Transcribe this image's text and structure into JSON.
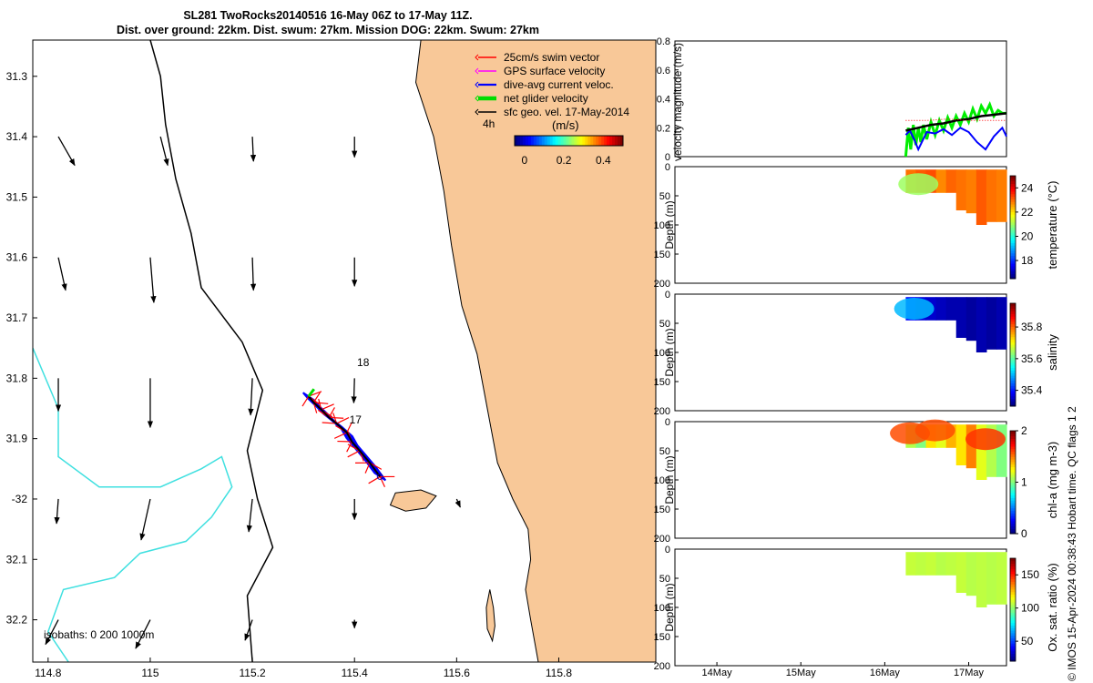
{
  "title_line1": "SL281 TwoRocks20140516 16-May 06Z to 17-May 11Z.",
  "title_line2": "Dist. over ground: 22km. Dist. swum: 27km. Mission DOG: 22km. Swum: 27km",
  "credit": "© IMOS 15-Apr-2024 00:38:43 Hobart time. QC flags 1  2",
  "colors": {
    "land": "#f8c898",
    "coast": "#000000",
    "isobath_200": "#000000",
    "isobath_1000": "#40e0e0",
    "track_swim": "#ff0000",
    "track_current": "#0000ff",
    "net": "#00dd00"
  },
  "chart_data": [
    {
      "type": "map",
      "name": "glider-track-map",
      "lon_range": [
        114.77,
        115.99
      ],
      "lat_range": [
        -32.27,
        -31.24
      ],
      "x_ticks": [
        {
          "v": 114.8,
          "label": "114.8"
        },
        {
          "v": 115,
          "label": "115"
        },
        {
          "v": 115.2,
          "label": "115.2"
        },
        {
          "v": 115.4,
          "label": "115.4"
        },
        {
          "v": 115.6,
          "label": "115.6"
        },
        {
          "v": 115.8,
          "label": "115.8"
        }
      ],
      "y_ticks": [
        {
          "v": -31.3,
          "label": "31.3"
        },
        {
          "v": -31.4,
          "label": "31.4"
        },
        {
          "v": -31.5,
          "label": "31.5"
        },
        {
          "v": -31.6,
          "label": "31.6"
        },
        {
          "v": -31.7,
          "label": "31.7"
        },
        {
          "v": -31.8,
          "label": "31.8"
        },
        {
          "v": -31.9,
          "label": "31.9"
        },
        {
          "v": -32,
          "label": "-32"
        },
        {
          "v": -32.1,
          "label": "32.1"
        },
        {
          "v": -32.2,
          "label": "32.2"
        }
      ],
      "legend": [
        {
          "label": "25cm/s swim vector",
          "color": "#ff0000",
          "width": 1
        },
        {
          "label": "GPS surface velocity",
          "color": "#ff00ff",
          "width": 1
        },
        {
          "label": "dive-avg current veloc.",
          "color": "#0000ff",
          "width": 1.5
        },
        {
          "label": "net glider velocity",
          "color": "#00dd00",
          "width": 3
        },
        {
          "label": "sfc geo. vel. 17-May-2014",
          "color": "#000000",
          "width": 1
        }
      ],
      "colorbar": {
        "label": "(m/s)",
        "duration_label": "4h",
        "ticks": [
          {
            "v": 0,
            "label": "0"
          },
          {
            "v": 0.2,
            "label": "0.2"
          },
          {
            "v": 0.4,
            "label": "0.4"
          }
        ],
        "range": [
          -0.05,
          0.5
        ]
      },
      "isobath_label": "isobaths: 0   200  1000m",
      "track_labels": [
        {
          "lon": 115.405,
          "lat": -31.78,
          "text": "18"
        },
        {
          "lon": 115.39,
          "lat": -31.875,
          "text": "17"
        }
      ],
      "track": [
        [
          115.45,
          -31.963
        ],
        [
          115.43,
          -31.94
        ],
        [
          115.41,
          -31.92
        ],
        [
          115.395,
          -31.905
        ],
        [
          115.385,
          -31.89
        ],
        [
          115.365,
          -31.875
        ],
        [
          115.35,
          -31.865
        ],
        [
          115.335,
          -31.852
        ],
        [
          115.32,
          -31.84
        ],
        [
          115.31,
          -31.83
        ]
      ],
      "coastline": [
        [
          115.99,
          -31.24
        ],
        [
          115.53,
          -31.24
        ],
        [
          115.52,
          -31.31
        ],
        [
          115.555,
          -31.4
        ],
        [
          115.575,
          -31.49
        ],
        [
          115.59,
          -31.58
        ],
        [
          115.61,
          -31.68
        ],
        [
          115.64,
          -31.76
        ],
        [
          115.66,
          -31.85
        ],
        [
          115.68,
          -31.94
        ],
        [
          115.71,
          -32.0
        ],
        [
          115.74,
          -32.05
        ],
        [
          115.745,
          -32.1
        ],
        [
          115.735,
          -32.15
        ],
        [
          115.745,
          -32.2
        ],
        [
          115.76,
          -32.27
        ],
        [
          115.99,
          -32.27
        ]
      ],
      "island_rottnest": [
        [
          115.48,
          -31.99
        ],
        [
          115.53,
          -31.985
        ],
        [
          115.56,
          -31.995
        ],
        [
          115.54,
          -32.015
        ],
        [
          115.5,
          -32.02
        ],
        [
          115.47,
          -32.01
        ],
        [
          115.48,
          -31.99
        ]
      ],
      "island_garden": [
        [
          115.665,
          -32.15
        ],
        [
          115.672,
          -32.18
        ],
        [
          115.675,
          -32.21
        ],
        [
          115.67,
          -32.235
        ],
        [
          115.66,
          -32.215
        ],
        [
          115.658,
          -32.18
        ],
        [
          115.665,
          -32.15
        ]
      ],
      "isobath_200": [
        [
          115.0,
          -31.24
        ],
        [
          115.02,
          -31.3
        ],
        [
          115.03,
          -31.38
        ],
        [
          115.05,
          -31.47
        ],
        [
          115.08,
          -31.56
        ],
        [
          115.1,
          -31.65
        ],
        [
          115.18,
          -31.74
        ],
        [
          115.22,
          -31.82
        ],
        [
          115.19,
          -31.92
        ],
        [
          115.21,
          -32.0
        ],
        [
          115.24,
          -32.08
        ],
        [
          115.19,
          -32.16
        ],
        [
          115.2,
          -32.27
        ]
      ],
      "isobath_1000": [
        [
          114.77,
          -31.75
        ],
        [
          114.82,
          -31.85
        ],
        [
          114.82,
          -31.93
        ],
        [
          114.9,
          -31.98
        ],
        [
          115.02,
          -31.98
        ],
        [
          115.1,
          -31.95
        ],
        [
          115.14,
          -31.93
        ],
        [
          115.16,
          -31.98
        ],
        [
          115.12,
          -32.03
        ],
        [
          115.07,
          -32.07
        ],
        [
          114.98,
          -32.09
        ],
        [
          114.93,
          -32.13
        ],
        [
          114.83,
          -32.15
        ],
        [
          114.8,
          -32.22
        ],
        [
          114.84,
          -32.27
        ]
      ],
      "geo_vectors": [
        {
          "lon": 114.82,
          "lat": -31.4,
          "u": 0.045,
          "v": -0.035
        },
        {
          "lon": 115.02,
          "lat": -31.4,
          "u": 0.02,
          "v": -0.035
        },
        {
          "lon": 115.2,
          "lat": -31.4,
          "u": 0.003,
          "v": -0.03
        },
        {
          "lon": 115.4,
          "lat": -31.4,
          "u": 0.0,
          "v": -0.025
        },
        {
          "lon": 114.82,
          "lat": -31.6,
          "u": 0.02,
          "v": -0.04
        },
        {
          "lon": 115.0,
          "lat": -31.6,
          "u": 0.01,
          "v": -0.055
        },
        {
          "lon": 115.2,
          "lat": -31.6,
          "u": 0.003,
          "v": -0.04
        },
        {
          "lon": 115.4,
          "lat": -31.6,
          "u": 0.0,
          "v": -0.035
        },
        {
          "lon": 114.82,
          "lat": -31.8,
          "u": 0.0,
          "v": -0.04
        },
        {
          "lon": 115.0,
          "lat": -31.8,
          "u": 0.0,
          "v": -0.06
        },
        {
          "lon": 115.2,
          "lat": -31.8,
          "u": -0.005,
          "v": -0.045
        },
        {
          "lon": 115.4,
          "lat": -31.8,
          "u": -0.002,
          "v": -0.03
        },
        {
          "lon": 114.82,
          "lat": -32.0,
          "u": -0.005,
          "v": -0.03
        },
        {
          "lon": 115.0,
          "lat": -32.0,
          "u": -0.025,
          "v": -0.05
        },
        {
          "lon": 115.2,
          "lat": -32.0,
          "u": -0.01,
          "v": -0.04
        },
        {
          "lon": 115.4,
          "lat": -32.0,
          "u": 0.0,
          "v": -0.025
        },
        {
          "lon": 115.6,
          "lat": -32.0,
          "u": 0.01,
          "v": -0.01
        },
        {
          "lon": 114.82,
          "lat": -32.2,
          "u": -0.035,
          "v": -0.03
        },
        {
          "lon": 115.0,
          "lat": -32.2,
          "u": -0.04,
          "v": -0.035
        },
        {
          "lon": 115.2,
          "lat": -32.2,
          "u": -0.02,
          "v": -0.025
        },
        {
          "lon": 115.4,
          "lat": -32.2,
          "u": 0.0,
          "v": -0.01
        }
      ]
    },
    {
      "type": "line",
      "name": "velocity-magnitude",
      "ylabel": "velocity magnitude (m/s)",
      "ylim": [
        0,
        0.8
      ],
      "xlim": [
        13.5,
        17.45
      ],
      "y_ticks": [
        {
          "v": 0,
          "label": "0"
        },
        {
          "v": 0.2,
          "label": "0.2"
        },
        {
          "v": 0.4,
          "label": "0.4"
        },
        {
          "v": 0.6,
          "label": "0.6"
        },
        {
          "v": 0.8,
          "label": "0.8"
        }
      ],
      "x_ticks": [
        {
          "v": 14,
          "label": "14May"
        },
        {
          "v": 15,
          "label": "15May"
        },
        {
          "v": 16,
          "label": "16May"
        },
        {
          "v": 17,
          "label": "17May"
        }
      ],
      "series": [
        {
          "name": "net glider velocity",
          "color": "#00ee00",
          "width": 3,
          "x": [
            16.25,
            16.28,
            16.31,
            16.34,
            16.37,
            16.4,
            16.43,
            16.46,
            16.5,
            16.55,
            16.6,
            16.65,
            16.7,
            16.75,
            16.8,
            16.85,
            16.9,
            16.95,
            17.0,
            17.05,
            17.1,
            17.15,
            17.2,
            17.25,
            17.3,
            17.35,
            17.4,
            17.45
          ],
          "y": [
            0.0,
            0.2,
            0.05,
            0.22,
            0.08,
            0.2,
            0.1,
            0.22,
            0.12,
            0.24,
            0.15,
            0.25,
            0.18,
            0.27,
            0.2,
            0.28,
            0.22,
            0.3,
            0.24,
            0.33,
            0.26,
            0.35,
            0.3,
            0.36,
            0.28,
            0.32,
            0.3,
            0.3
          ]
        },
        {
          "name": "dive-avg current",
          "color": "#0000ff",
          "width": 2,
          "x": [
            16.25,
            16.3,
            16.35,
            16.4,
            16.5,
            16.6,
            16.7,
            16.8,
            16.9,
            17.0,
            17.1,
            17.2,
            17.3,
            17.4,
            17.45
          ],
          "y": [
            0.15,
            0.18,
            0.12,
            0.05,
            0.17,
            0.16,
            0.19,
            0.15,
            0.2,
            0.17,
            0.1,
            0.05,
            0.14,
            0.2,
            0.14
          ]
        },
        {
          "name": "sfc geo. vel.",
          "color": "#000000",
          "width": 2.5,
          "x": [
            16.25,
            16.4,
            16.55,
            16.7,
            16.85,
            17.0,
            17.15,
            17.3,
            17.45
          ],
          "y": [
            0.18,
            0.2,
            0.22,
            0.23,
            0.25,
            0.26,
            0.28,
            0.29,
            0.3
          ]
        },
        {
          "name": "swim vector",
          "color": "#ff0000",
          "width": 1,
          "dotted": true,
          "x": [
            16.25,
            16.5,
            16.75,
            17.0,
            17.25,
            17.45
          ],
          "y": [
            0.25,
            0.25,
            0.26,
            0.25,
            0.25,
            0.25
          ]
        }
      ]
    },
    {
      "type": "heatmap",
      "name": "temperature-section",
      "ylabel": "Depth (m)",
      "clabel": "temperature (°C)",
      "ylim": [
        0,
        200
      ],
      "y_ticks": [
        {
          "v": 0,
          "label": "0"
        },
        {
          "v": 50,
          "label": "50"
        },
        {
          "v": 100,
          "label": "100"
        },
        {
          "v": 150,
          "label": "150"
        },
        {
          "v": 200,
          "label": "200"
        }
      ],
      "crange": [
        16.5,
        25
      ],
      "cticks": [
        {
          "v": 18,
          "label": "18"
        },
        {
          "v": 20,
          "label": "20"
        },
        {
          "v": 22,
          "label": "22"
        },
        {
          "v": 24,
          "label": "24"
        }
      ],
      "section_x": [
        16.25,
        17.45
      ],
      "nearshore_depth": [
        [
          16.25,
          45
        ],
        [
          16.75,
          45
        ],
        [
          16.8,
          75
        ],
        [
          16.95,
          80
        ],
        [
          17.05,
          100
        ],
        [
          17.25,
          95
        ],
        [
          17.45,
          95
        ]
      ],
      "values": [
        23.0,
        23.2,
        23.3,
        22.8,
        23.1,
        23.0,
        22.9,
        23.2,
        23.0,
        22.9
      ],
      "patches": [
        {
          "x": 16.4,
          "d": 30,
          "v": 21.0
        }
      ]
    },
    {
      "type": "heatmap",
      "name": "salinity-section",
      "ylabel": "Depth (m)",
      "clabel": "salinity",
      "ylim": [
        0,
        200
      ],
      "y_ticks": [
        {
          "v": 0,
          "label": "0"
        },
        {
          "v": 50,
          "label": "50"
        },
        {
          "v": 100,
          "label": "100"
        },
        {
          "v": 150,
          "label": "150"
        },
        {
          "v": 200,
          "label": "200"
        }
      ],
      "crange": [
        35.3,
        35.95
      ],
      "cticks": [
        {
          "v": 35.4,
          "label": "35.4"
        },
        {
          "v": 35.6,
          "label": "35.6"
        },
        {
          "v": 35.8,
          "label": "35.8"
        }
      ],
      "section_x": [
        16.25,
        17.45
      ],
      "nearshore_depth": [
        [
          16.25,
          45
        ],
        [
          16.75,
          45
        ],
        [
          16.8,
          75
        ],
        [
          16.95,
          80
        ],
        [
          17.05,
          100
        ],
        [
          17.25,
          95
        ],
        [
          17.45,
          95
        ]
      ],
      "values": [
        35.38,
        35.36,
        35.35,
        35.34,
        35.33,
        35.33,
        35.32,
        35.33,
        35.32,
        35.33
      ],
      "patches": [
        {
          "x": 16.35,
          "d": 25,
          "v": 35.5
        }
      ]
    },
    {
      "type": "heatmap",
      "name": "chlorophyll-section",
      "ylabel": "Depth (m)",
      "clabel": "chl-a (mg m-3)",
      "ylim": [
        0,
        200
      ],
      "y_ticks": [
        {
          "v": 0,
          "label": "0"
        },
        {
          "v": 50,
          "label": "50"
        },
        {
          "v": 100,
          "label": "100"
        },
        {
          "v": 150,
          "label": "150"
        },
        {
          "v": 200,
          "label": "200"
        }
      ],
      "crange": [
        0,
        2
      ],
      "cticks": [
        {
          "v": 0,
          "label": "0"
        },
        {
          "v": 1,
          "label": "1"
        },
        {
          "v": 2,
          "label": "2"
        }
      ],
      "section_x": [
        16.25,
        17.45
      ],
      "nearshore_depth": [
        [
          16.25,
          45
        ],
        [
          16.75,
          45
        ],
        [
          16.8,
          75
        ],
        [
          16.95,
          80
        ],
        [
          17.05,
          100
        ],
        [
          17.25,
          95
        ],
        [
          17.45,
          95
        ]
      ],
      "values": [
        1.1,
        1.0,
        1.3,
        1.2,
        1.4,
        1.3,
        1.5,
        1.2,
        1.1,
        1.0
      ],
      "patches": [
        {
          "x": 16.3,
          "d": 20,
          "v": 1.6
        },
        {
          "x": 16.6,
          "d": 15,
          "v": 1.6
        },
        {
          "x": 17.2,
          "d": 30,
          "v": 1.65
        }
      ]
    },
    {
      "type": "heatmap",
      "name": "oxygen-section",
      "ylabel": "Depth (m)",
      "clabel": "Ox. sat. ratio (%)",
      "ylim": [
        0,
        200
      ],
      "y_ticks": [
        {
          "v": 0,
          "label": "0"
        },
        {
          "v": 50,
          "label": "50"
        },
        {
          "v": 100,
          "label": "100"
        },
        {
          "v": 150,
          "label": "150"
        },
        {
          "v": 200,
          "label": "200"
        }
      ],
      "crange": [
        20,
        175
      ],
      "cticks": [
        {
          "v": 50,
          "label": "50"
        },
        {
          "v": 100,
          "label": "100"
        },
        {
          "v": 150,
          "label": "150"
        }
      ],
      "section_x": [
        16.25,
        17.45
      ],
      "nearshore_depth": [
        [
          16.25,
          45
        ],
        [
          16.75,
          45
        ],
        [
          16.8,
          75
        ],
        [
          16.95,
          80
        ],
        [
          17.05,
          100
        ],
        [
          17.25,
          95
        ],
        [
          17.45,
          95
        ]
      ],
      "values": [
        108,
        107,
        108,
        106,
        107,
        108,
        106,
        107,
        106,
        107
      ],
      "patches": []
    }
  ]
}
